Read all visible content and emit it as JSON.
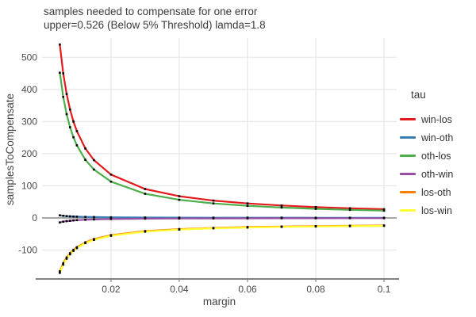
{
  "chart_data": {
    "type": "line",
    "title": "samples needed to compensate for one error",
    "subtitle": "upper=0.526 (Below 5% Threshold) lamda=1.8",
    "xlabel": "margin",
    "ylabel": "samplesToCompensate",
    "legend": {
      "title": "tau",
      "position": "right"
    },
    "grid": true,
    "x": [
      0.005,
      0.006,
      0.007,
      0.008,
      0.009,
      0.01,
      0.0125,
      0.015,
      0.02,
      0.03,
      0.04,
      0.05,
      0.06,
      0.07,
      0.08,
      0.09,
      0.1
    ],
    "series": [
      {
        "name": "win-los",
        "color": "#E41A1C",
        "values": [
          540,
          450,
          385.7,
          337.5,
          300,
          270,
          216,
          180,
          135,
          90,
          67.5,
          54,
          45,
          38.6,
          33.8,
          30,
          27
        ]
      },
      {
        "name": "win-oth",
        "color": "#377EB8",
        "values": [
          8,
          6.7,
          5.7,
          5,
          4.4,
          4,
          3.2,
          2.7,
          2,
          1.3,
          1,
          0.8,
          0.7,
          0.6,
          0.5,
          0.4,
          0.4
        ]
      },
      {
        "name": "oth-los",
        "color": "#4DAF4A",
        "values": [
          452,
          376.7,
          322.9,
          282.5,
          251.1,
          226,
          180.8,
          150.7,
          113,
          75.3,
          56.5,
          45.2,
          37.7,
          32.3,
          28.3,
          25.1,
          22.6
        ]
      },
      {
        "name": "oth-win",
        "color": "#984EA3",
        "values": [
          -14,
          -11.7,
          -10,
          -8.8,
          -7.8,
          -7,
          -5.6,
          -4.7,
          -3.5,
          -2.3,
          -1.8,
          -1.4,
          -1.2,
          -1,
          -0.9,
          -0.8,
          -0.7
        ]
      },
      {
        "name": "los-oth",
        "color": "#FF7F00",
        "values": [
          -166,
          -141,
          -123.1,
          -109.8,
          -99.3,
          -91,
          -76,
          -66,
          -53.5,
          -41,
          -34.8,
          -31,
          -28.5,
          -26.7,
          -25.4,
          -24.3,
          -23.5
        ]
      },
      {
        "name": "los-win",
        "color": "#FFFF33",
        "values": [
          -171,
          -145.3,
          -127,
          -113.3,
          -102.6,
          -94,
          -78.6,
          -68.3,
          -55.5,
          -42.7,
          -36.3,
          -32.4,
          -29.8,
          -28,
          -26.6,
          -25.6,
          -24.7
        ]
      }
    ],
    "xticks": {
      "values": [
        0.02,
        0.04,
        0.06,
        0.08,
        0.1
      ],
      "labels": [
        "0.02",
        "0.04",
        "0.06",
        "0.08",
        "0.1"
      ]
    },
    "yticks": {
      "values": [
        -100,
        0,
        100,
        200,
        300,
        400,
        500
      ],
      "labels": [
        "-100",
        "0",
        "100",
        "200",
        "300",
        "400",
        "500"
      ]
    },
    "xlim": [
      -0.0002,
      0.1037
    ],
    "ylim": [
      -190,
      560
    ],
    "marker": {
      "color": "#000000",
      "size": 2.6
    },
    "style": {
      "grid_color": "#e7e7e7",
      "zeroline_color": "#8c8c8c",
      "axisline_color": "#808080",
      "tick_color": "#888888",
      "background": "#ffffff"
    }
  }
}
